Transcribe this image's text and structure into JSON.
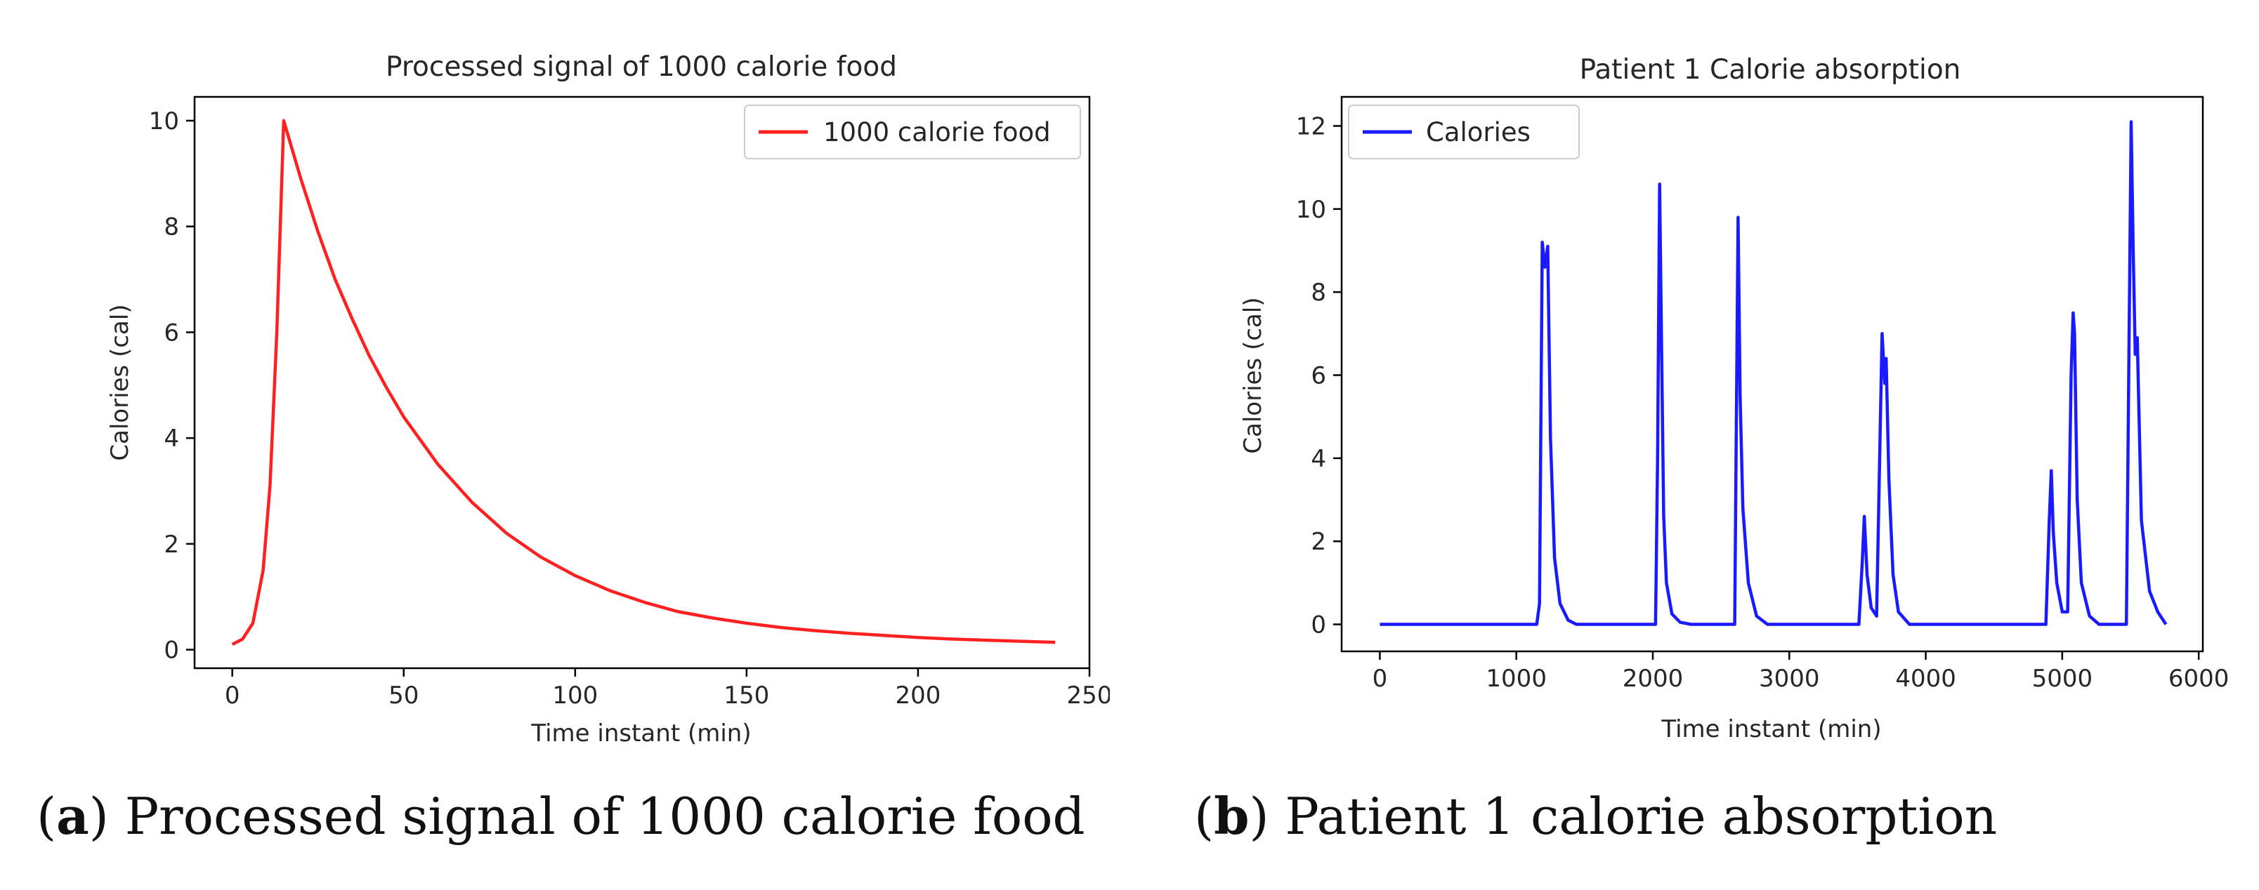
{
  "chart_data": [
    {
      "type": "line",
      "title": "Processed signal of 1000 calorie food",
      "xlabel": "Time instant (min)",
      "ylabel": "Calories (cal)",
      "xlim": [
        -11,
        250
      ],
      "ylim": [
        -0.35,
        10.45
      ],
      "xticks": [
        0,
        50,
        100,
        150,
        200,
        250
      ],
      "yticks": [
        0,
        2,
        4,
        6,
        8,
        10
      ],
      "legend": "top-right",
      "grid": false,
      "series": [
        {
          "name": "1000 calorie food",
          "color": "#ff2020",
          "x": [
            0,
            3,
            6,
            9,
            11,
            13,
            15,
            20,
            25,
            30,
            35,
            40,
            45,
            50,
            60,
            70,
            80,
            90,
            100,
            110,
            120,
            130,
            140,
            150,
            160,
            170,
            180,
            190,
            200,
            210,
            220,
            230,
            240
          ],
          "y": [
            0.1,
            0.2,
            0.5,
            1.5,
            3.1,
            6.0,
            10.0,
            8.9,
            7.9,
            7.0,
            6.25,
            5.55,
            4.95,
            4.4,
            3.5,
            2.78,
            2.2,
            1.75,
            1.4,
            1.12,
            0.9,
            0.72,
            0.6,
            0.5,
            0.42,
            0.36,
            0.31,
            0.27,
            0.23,
            0.2,
            0.18,
            0.16,
            0.14
          ]
        }
      ]
    },
    {
      "type": "line",
      "title": "Patient 1 Calorie absorption",
      "xlabel": "Time instant (min)",
      "ylabel": "Calories (cal)",
      "xlim": [
        -280,
        6030
      ],
      "ylim": [
        -0.65,
        12.7
      ],
      "xticks": [
        0,
        1000,
        2000,
        3000,
        4000,
        5000,
        6000
      ],
      "yticks": [
        0,
        2,
        4,
        6,
        8,
        10,
        12
      ],
      "legend": "top-left",
      "grid": false,
      "series": [
        {
          "name": "Calories",
          "color": "#1a1aff",
          "x": [
            0,
            1150,
            1170,
            1190,
            1210,
            1230,
            1250,
            1280,
            1320,
            1380,
            1440,
            2020,
            2035,
            2050,
            2065,
            2080,
            2100,
            2140,
            2200,
            2280,
            2600,
            2610,
            2625,
            2640,
            2660,
            2700,
            2760,
            2840,
            3510,
            3535,
            3550,
            3570,
            3600,
            3640,
            3680,
            3700,
            3710,
            3730,
            3760,
            3800,
            3880,
            4880,
            4905,
            4920,
            4935,
            4960,
            5000,
            5040,
            5065,
            5080,
            5090,
            5110,
            5140,
            5200,
            5270,
            5470,
            5490,
            5505,
            5520,
            5535,
            5550,
            5580,
            5640,
            5700,
            5760
          ],
          "y": [
            0,
            0,
            0.5,
            9.2,
            8.6,
            9.1,
            4.5,
            1.6,
            0.5,
            0.1,
            0,
            0,
            4.0,
            10.6,
            6.5,
            2.6,
            1.0,
            0.25,
            0.05,
            0,
            0,
            4.0,
            9.8,
            5.5,
            2.8,
            1.0,
            0.2,
            0,
            0,
            1.5,
            2.6,
            1.2,
            0.4,
            0.2,
            7.0,
            5.8,
            6.4,
            3.5,
            1.2,
            0.3,
            0,
            0,
            2.5,
            3.7,
            2.2,
            1.0,
            0.3,
            0.3,
            6.0,
            7.5,
            7.0,
            3.0,
            1.0,
            0.2,
            0,
            0,
            7.0,
            12.1,
            9.0,
            6.5,
            6.9,
            2.5,
            0.8,
            0.3,
            0
          ]
        }
      ]
    }
  ],
  "captions": [
    {
      "letter": "a",
      "text": "Processed signal of 1000 calorie food"
    },
    {
      "letter": "b",
      "text": "Patient 1 calorie absorption"
    }
  ]
}
